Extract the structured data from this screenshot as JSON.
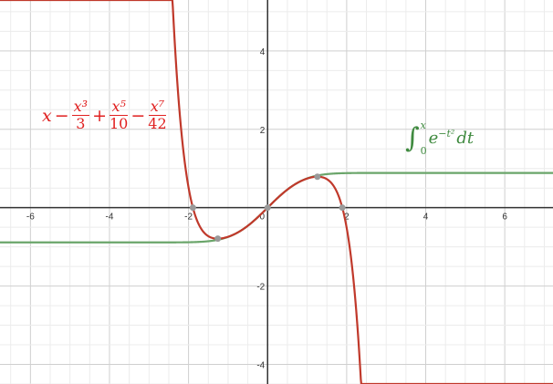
{
  "chart_data": {
    "type": "line",
    "xlim": [
      -6.77,
      7.22
    ],
    "ylim": [
      -4.5,
      5.3
    ],
    "grid": true,
    "x_ticks": [
      "-6",
      "-4",
      "-2",
      "0",
      "2",
      "4",
      "6"
    ],
    "y_ticks": [
      "4",
      "2",
      "-2",
      "-4"
    ],
    "series": [
      {
        "name": "x − x³/3 + x⁵/10 − x⁷/42",
        "expression": "x - x^3/3 + x^5/10 - x^7/42",
        "color": "#c0392b"
      },
      {
        "name": "∫₀ˣ e^(−t²) dt",
        "expression": "integral_0^x e^(-t^2) dt",
        "color": "#6aa56a"
      }
    ],
    "points": [
      [
        -1.89,
        0
      ],
      [
        -1.26,
        -0.79
      ],
      [
        0,
        0
      ],
      [
        1.26,
        0.79
      ],
      [
        1.89,
        0
      ]
    ],
    "annotations": {
      "poly": {
        "x": "x",
        "minus1": "−",
        "n1": "x³",
        "d1": "3",
        "plus": "+",
        "n2": "x⁵",
        "d2": "10",
        "minus2": "−",
        "n3": "x⁷",
        "d3": "42"
      },
      "integral": {
        "sign": "∫",
        "upper": "x",
        "lower": "0",
        "body": "e",
        "exp": "−t²",
        "dt": "dt"
      }
    }
  }
}
